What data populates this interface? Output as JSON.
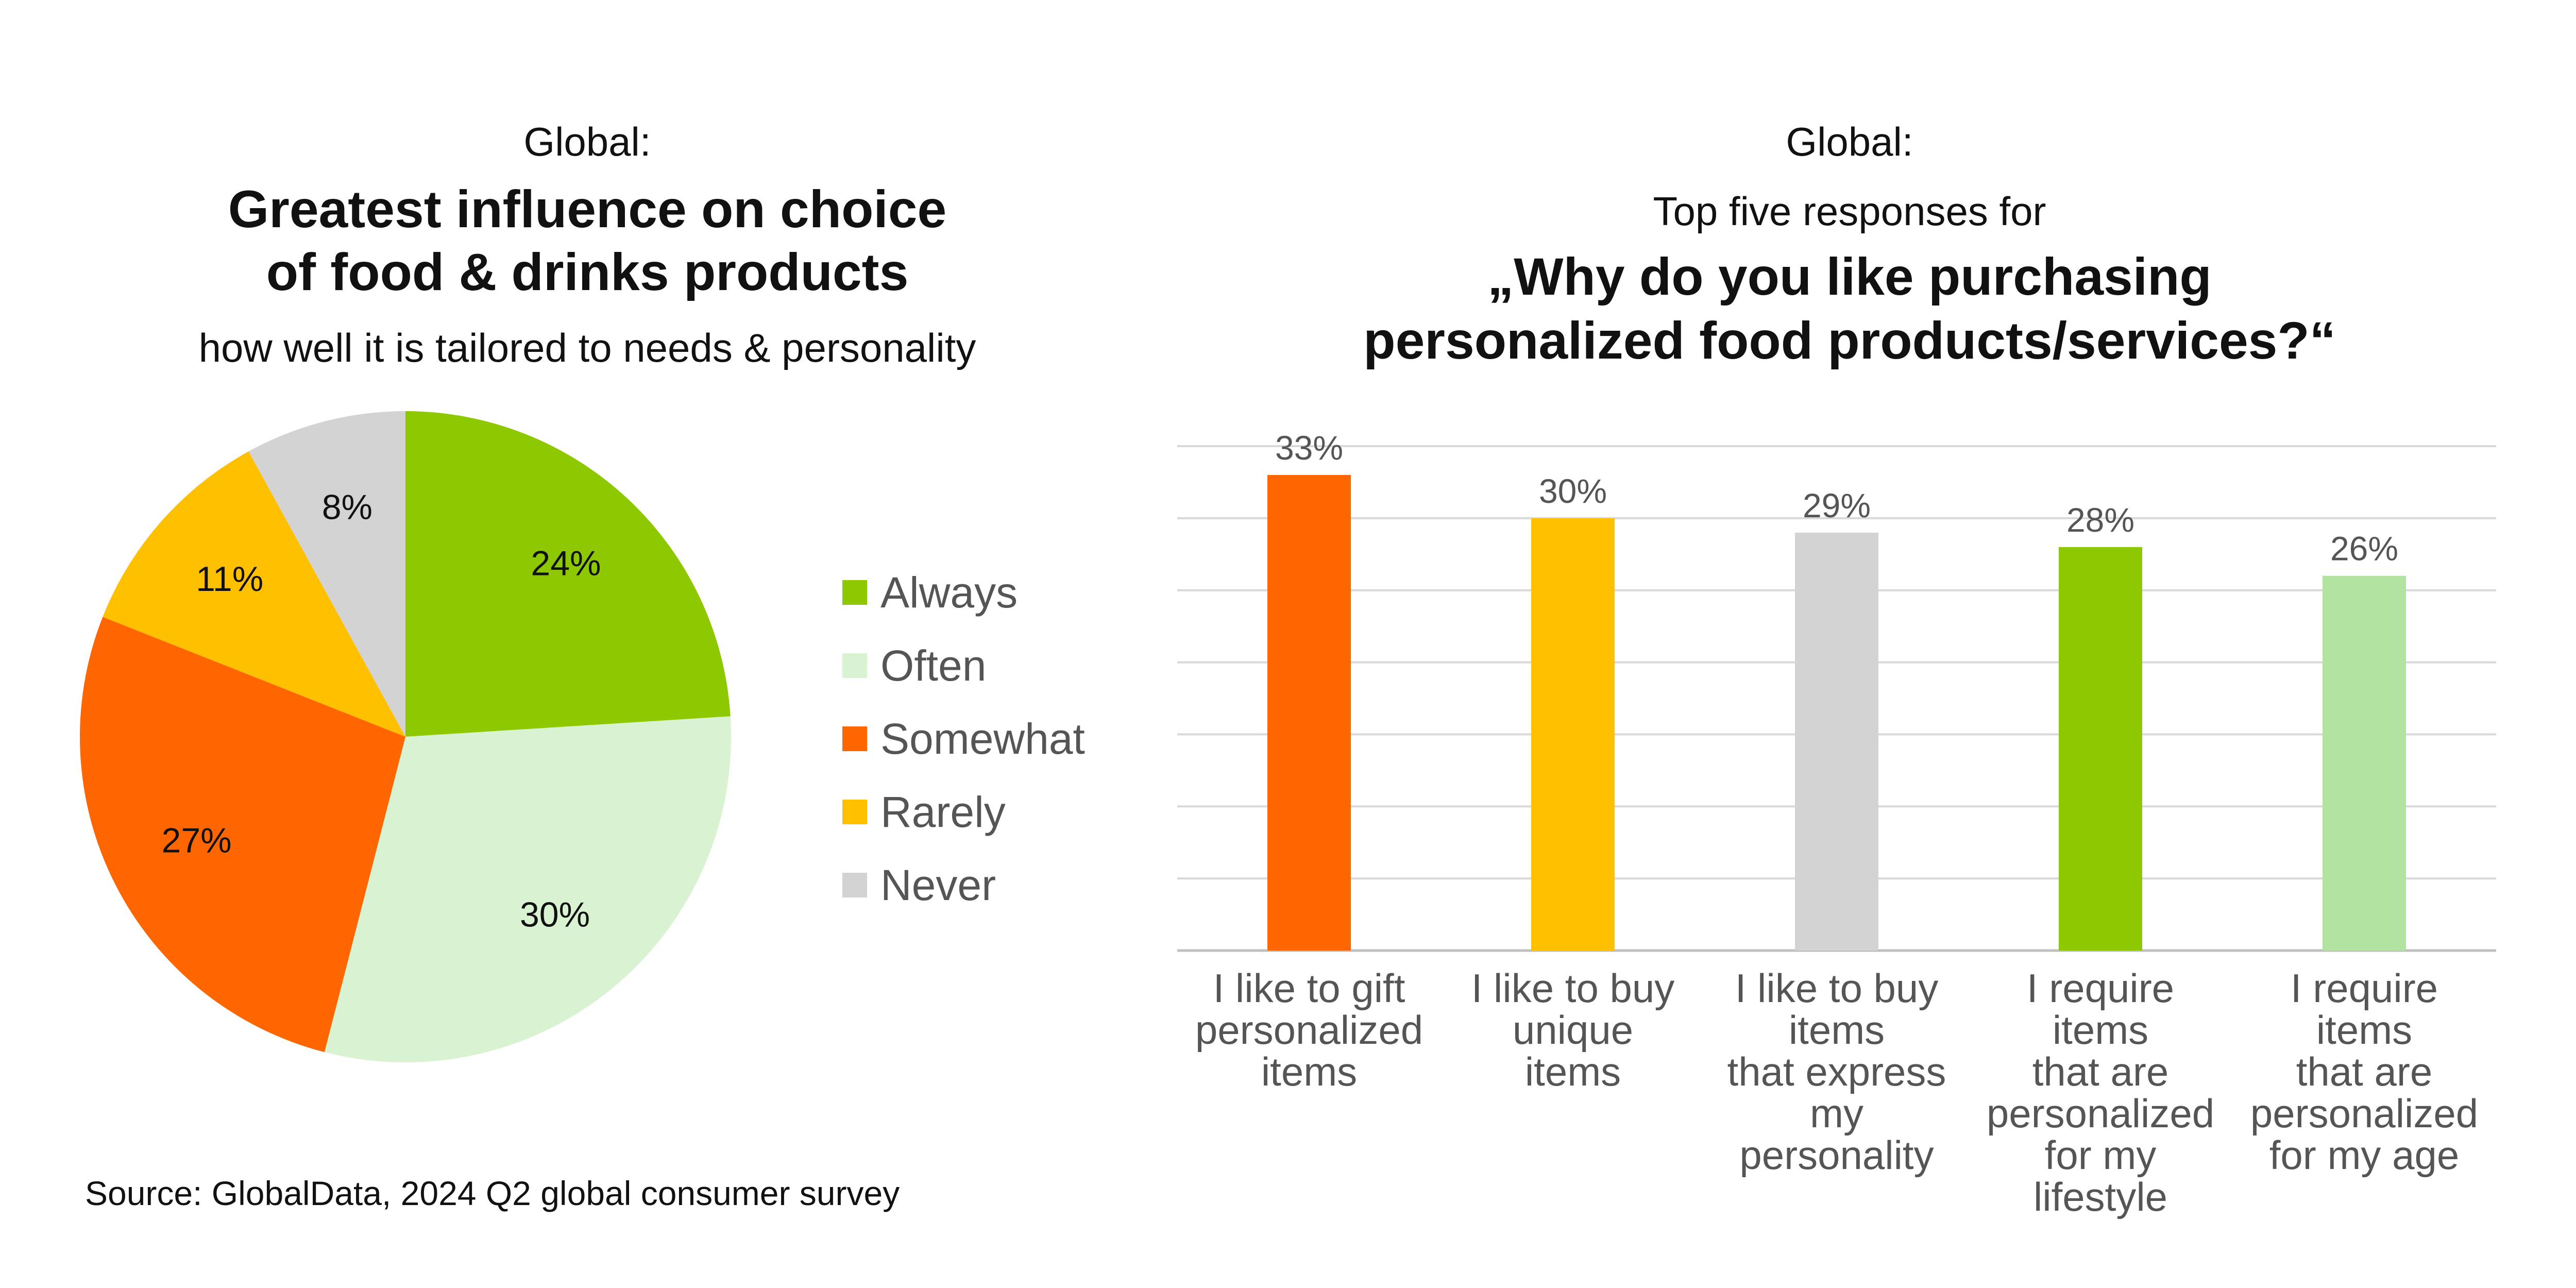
{
  "left_panel": {
    "pre_title": "Global:",
    "title_line1": "Greatest influence on choice",
    "title_line2": "of food & drinks products",
    "subtitle": "how well it is tailored to needs & personality"
  },
  "right_panel": {
    "pre_title": "Global:",
    "question_prefix": "Top five responses for",
    "question_line1": "„Why do you like purchasing",
    "question_line2": "personalized food products/services?“"
  },
  "source": "Source: GlobalData, 2024 Q2 global consumer survey",
  "chart_data": [
    {
      "type": "pie",
      "title": "Greatest influence on choice of food & drinks products",
      "subtitle": "how well it is tailored to needs & personality",
      "legend_position": "right",
      "slices": [
        {
          "label": "Always",
          "value": 24,
          "display": "24%",
          "color": "#8DC800"
        },
        {
          "label": "Often",
          "value": 30,
          "display": "30%",
          "color": "#D8F2D2"
        },
        {
          "label": "Somewhat",
          "value": 27,
          "display": "27%",
          "color": "#FF6600"
        },
        {
          "label": "Rarely",
          "value": 11,
          "display": "11%",
          "color": "#FFC000"
        },
        {
          "label": "Never",
          "value": 8,
          "display": "8%",
          "color": "#D3D3D3"
        }
      ]
    },
    {
      "type": "bar",
      "title": "Why do you like purchasing personalized food products/services?",
      "categories": [
        "I like to gift\npersonalized\nitems",
        "I like to buy\nunique\nitems",
        "I like to buy\nitems\nthat express\nmy\npersonality",
        "I require\nitems\nthat are\npersonalized\nfor my\nlifestyle",
        "I require\nitems\nthat are\npersonalized\nfor my age"
      ],
      "values": [
        33,
        30,
        29,
        28,
        26
      ],
      "value_labels": [
        "33%",
        "30%",
        "29%",
        "28%",
        "26%"
      ],
      "colors": [
        "#FF6600",
        "#FFC000",
        "#D3D3D3",
        "#8DC800",
        "#B3E3A0"
      ],
      "ylim": [
        0,
        35
      ],
      "gridline_step": 5,
      "grid": true,
      "xlabel": "",
      "ylabel": ""
    }
  ]
}
